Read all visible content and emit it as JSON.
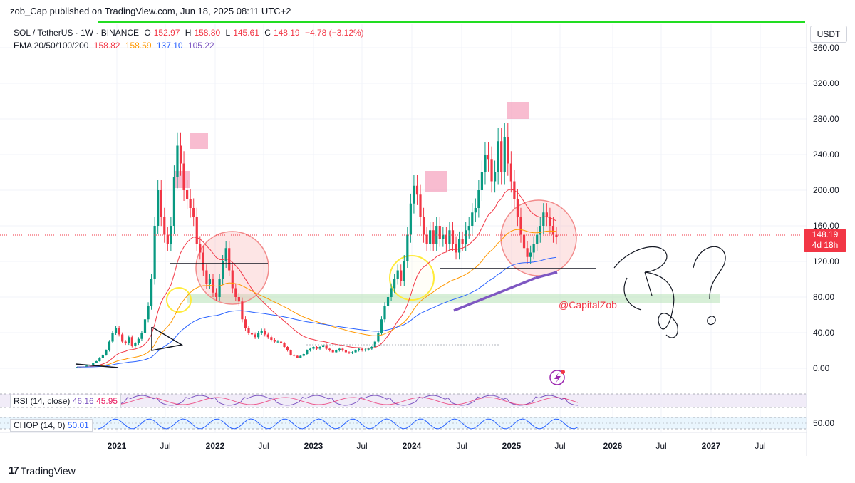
{
  "header": {
    "published": "zob_Cap published on TradingView.com, Jun 18, 2025 08:11 UTC+2"
  },
  "legend": {
    "symbol": "SOL / TetherUS · 1W · BINANCE",
    "o_label": "O",
    "o": "152.97",
    "h_label": "H",
    "h": "158.80",
    "l_label": "L",
    "l": "145.61",
    "c_label": "C",
    "c": "148.19",
    "change": "−4.78 (−3.12%)",
    "ema_label": "EMA 20/50/100/200",
    "ema20": "158.82",
    "ema50": "158.59",
    "ema100": "137.10",
    "ema200": "105.22"
  },
  "currency": "USDT",
  "price_tag": {
    "price": "148.19",
    "countdown": "4d 18h"
  },
  "indicators": {
    "rsi_label": "RSI (14, close)",
    "rsi_value": "46.16",
    "rsi_ma": "45.95",
    "chop_label": "CHOP (14, 0)",
    "chop_value": "50.01",
    "chop_axis": "50.00"
  },
  "watermark": "@CapitalZob",
  "footer": {
    "brand": "TradingView",
    "mark": "17"
  },
  "colors": {
    "up": "#089981",
    "down": "#f23645",
    "ema20": "#f23645",
    "ema50": "#ff9800",
    "ema100": "#2962ff",
    "ema200": "#7e57c2",
    "highlight_pink": "#f7a6c8",
    "support_green": "#b7e1b7",
    "circle_yellow": "#ffeb3b"
  },
  "chart_data": {
    "type": "candlestick",
    "y_axis": {
      "ticks": [
        "0.00",
        "40.00",
        "80.00",
        "120.00",
        "160.00",
        "200.00",
        "240.00",
        "280.00",
        "320.00",
        "360.00"
      ],
      "range": [
        -10,
        365
      ]
    },
    "x_axis": {
      "ticks": [
        "2021",
        "Jul",
        "2022",
        "Jul",
        "2023",
        "Jul",
        "2024",
        "Jul",
        "2025",
        "Jul",
        "2026",
        "Jul",
        "2027",
        "Jul"
      ]
    },
    "last_price": 148.19,
    "weekly_closes_approx": [
      1.5,
      1.8,
      2,
      3,
      4,
      6,
      8,
      12,
      15,
      20,
      30,
      40,
      45,
      38,
      30,
      28,
      35,
      25,
      28,
      33,
      40,
      55,
      70,
      100,
      160,
      200,
      170,
      150,
      140,
      160,
      215,
      250,
      230,
      200,
      190,
      180,
      170,
      140,
      130,
      110,
      95,
      100,
      85,
      80,
      100,
      120,
      135,
      110,
      90,
      80,
      75,
      55,
      45,
      40,
      38,
      35,
      40,
      42,
      38,
      35,
      32,
      30,
      30,
      28,
      24,
      20,
      15,
      14,
      12,
      14,
      16,
      20,
      22,
      24,
      22,
      24,
      26,
      22,
      20,
      18,
      20,
      22,
      20,
      18,
      17,
      18,
      20,
      22,
      20,
      21,
      22,
      24,
      30,
      40,
      55,
      70,
      80,
      90,
      100,
      110,
      98,
      120,
      150,
      185,
      205,
      195,
      170,
      150,
      140,
      155,
      140,
      160,
      145,
      150,
      140,
      155,
      140,
      130,
      145,
      140,
      155,
      160,
      175,
      180,
      200,
      220,
      240,
      235,
      210,
      220,
      255,
      220,
      260,
      230,
      210,
      190,
      170,
      150,
      135,
      125,
      130,
      140,
      150,
      160,
      175,
      170,
      160,
      150,
      148
    ],
    "ema200_approx": [
      70,
      75,
      80,
      85,
      90,
      92,
      95,
      97,
      99,
      101,
      103,
      104,
      105.22
    ],
    "annotations": {
      "resistance_line_1": 118,
      "resistance_line_2": 112,
      "support_zone": [
        74,
        82
      ],
      "highlight_boxes": [
        "2021 Jul peak ~215",
        "2021 Nov peak ~260",
        "2024 Mar peak ~205",
        "2025 Jan peak ~295"
      ]
    }
  }
}
